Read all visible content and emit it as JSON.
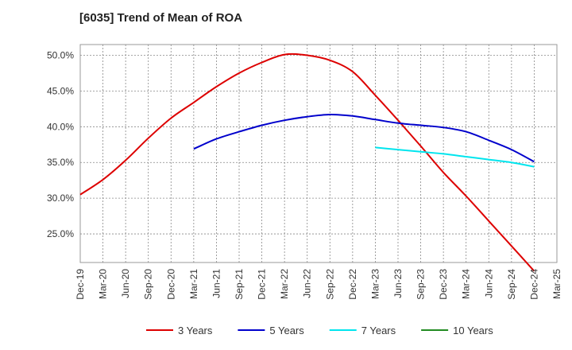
{
  "chart_data": {
    "type": "line",
    "title": "[6035]  Trend of Mean of ROA",
    "xlabel": "",
    "ylabel": "",
    "x_ticks": [
      "Dec-19",
      "Mar-20",
      "Jun-20",
      "Sep-20",
      "Dec-20",
      "Mar-21",
      "Jun-21",
      "Sep-21",
      "Dec-21",
      "Mar-22",
      "Jun-22",
      "Sep-22",
      "Dec-22",
      "Mar-23",
      "Jun-23",
      "Sep-23",
      "Dec-23",
      "Mar-24",
      "Jun-24",
      "Sep-24",
      "Dec-24",
      "Mar-25"
    ],
    "y_ticks": [
      "25.0%",
      "30.0%",
      "35.0%",
      "40.0%",
      "45.0%",
      "50.0%"
    ],
    "y_tick_values": [
      25,
      30,
      35,
      40,
      45,
      50
    ],
    "ylim": [
      21,
      51.5
    ],
    "grid": true,
    "legend_position": "bottom",
    "series": [
      {
        "name": "3 Years",
        "color": "#dd0000",
        "x": [
          "Dec-19",
          "Mar-20",
          "Jun-20",
          "Sep-20",
          "Dec-20",
          "Mar-21",
          "Jun-21",
          "Sep-21",
          "Dec-21",
          "Mar-22",
          "Jun-22",
          "Sep-22",
          "Dec-22",
          "Mar-23",
          "Jun-23",
          "Sep-23",
          "Dec-23",
          "Mar-24",
          "Jun-24",
          "Sep-24",
          "Dec-24"
        ],
        "values": [
          30.5,
          32.6,
          35.3,
          38.4,
          41.2,
          43.4,
          45.6,
          47.5,
          49.0,
          50.1,
          50.0,
          49.3,
          47.7,
          44.4,
          40.9,
          37.3,
          33.6,
          30.3,
          26.8,
          23.3,
          19.8
        ]
      },
      {
        "name": "5 Years",
        "color": "#0000cc",
        "x": [
          "Mar-21",
          "Jun-21",
          "Sep-21",
          "Dec-21",
          "Mar-22",
          "Jun-22",
          "Sep-22",
          "Dec-22",
          "Mar-23",
          "Jun-23",
          "Sep-23",
          "Dec-23",
          "Mar-24",
          "Jun-24",
          "Sep-24",
          "Dec-24"
        ],
        "values": [
          36.9,
          38.3,
          39.3,
          40.2,
          40.9,
          41.4,
          41.7,
          41.5,
          41.0,
          40.5,
          40.2,
          39.9,
          39.3,
          38.1,
          36.8,
          35.1
        ]
      },
      {
        "name": "7 Years",
        "color": "#00e5ee",
        "x": [
          "Mar-23",
          "Jun-23",
          "Sep-23",
          "Dec-23",
          "Mar-24",
          "Jun-24",
          "Sep-24",
          "Dec-24"
        ],
        "values": [
          37.1,
          36.8,
          36.5,
          36.2,
          35.8,
          35.4,
          35.0,
          34.4
        ]
      },
      {
        "name": "10 Years",
        "color": "#228b22",
        "x": [],
        "values": []
      }
    ]
  }
}
